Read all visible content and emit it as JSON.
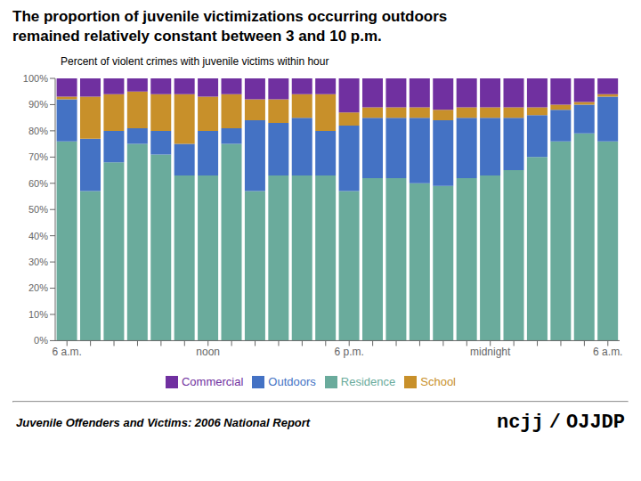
{
  "chart_data": {
    "type": "bar",
    "title": "The proportion of juvenile victimizations occurring outdoors\nremained relatively constant between 3 and 10 p.m.",
    "subtitle": "Percent of violent crimes with juvenile victims within hour",
    "categories": [
      "6 a.m.",
      null,
      null,
      null,
      null,
      null,
      "noon",
      null,
      null,
      null,
      null,
      null,
      "6 p.m.",
      null,
      null,
      null,
      null,
      null,
      "midnight",
      null,
      null,
      null,
      null,
      "6 a.m."
    ],
    "series": [
      {
        "name": "Residence",
        "color": "#6aab9c",
        "values": [
          76,
          57,
          68,
          75,
          71,
          63,
          63,
          75,
          57,
          63,
          63,
          63,
          57,
          62,
          62,
          60,
          59,
          62,
          63,
          65,
          70,
          76,
          79,
          76
        ]
      },
      {
        "name": "Outdoors",
        "color": "#4472c4",
        "values": [
          16,
          20,
          12,
          6,
          9,
          12,
          17,
          6,
          27,
          20,
          22,
          17,
          25,
          23,
          23,
          25,
          25,
          23,
          22,
          20,
          16,
          12,
          11,
          17
        ]
      },
      {
        "name": "School",
        "color": "#c8902a",
        "values": [
          1,
          16,
          14,
          14,
          14,
          19,
          13,
          13,
          8,
          9,
          9,
          14,
          5,
          4,
          4,
          4,
          4,
          4,
          4,
          4,
          3,
          2,
          1,
          1
        ]
      },
      {
        "name": "Commercial",
        "color": "#7030a0",
        "values": [
          7,
          7,
          6,
          5,
          6,
          6,
          7,
          6,
          8,
          8,
          6,
          6,
          13,
          11,
          11,
          11,
          12,
          11,
          11,
          11,
          11,
          10,
          9,
          6
        ]
      }
    ],
    "stacked": true,
    "ylim": [
      0,
      100
    ],
    "yticks": [
      {
        "value": 0,
        "label": "0%"
      },
      {
        "value": 10,
        "label": "10%"
      },
      {
        "value": 20,
        "label": "20%"
      },
      {
        "value": 30,
        "label": "30%"
      },
      {
        "value": 40,
        "label": "40%"
      },
      {
        "value": 50,
        "label": "50%"
      },
      {
        "value": 60,
        "label": "60%"
      },
      {
        "value": 70,
        "label": "70%"
      },
      {
        "value": 80,
        "label": "80%"
      },
      {
        "value": 90,
        "label": "90%"
      },
      {
        "value": 100,
        "label": "100%"
      }
    ],
    "grid": false,
    "legend": "bottom",
    "annotations": [
      "Juvenile Offenders and Victims: 2006 National Report",
      "ncjj",
      "/",
      "OJJDP"
    ]
  }
}
